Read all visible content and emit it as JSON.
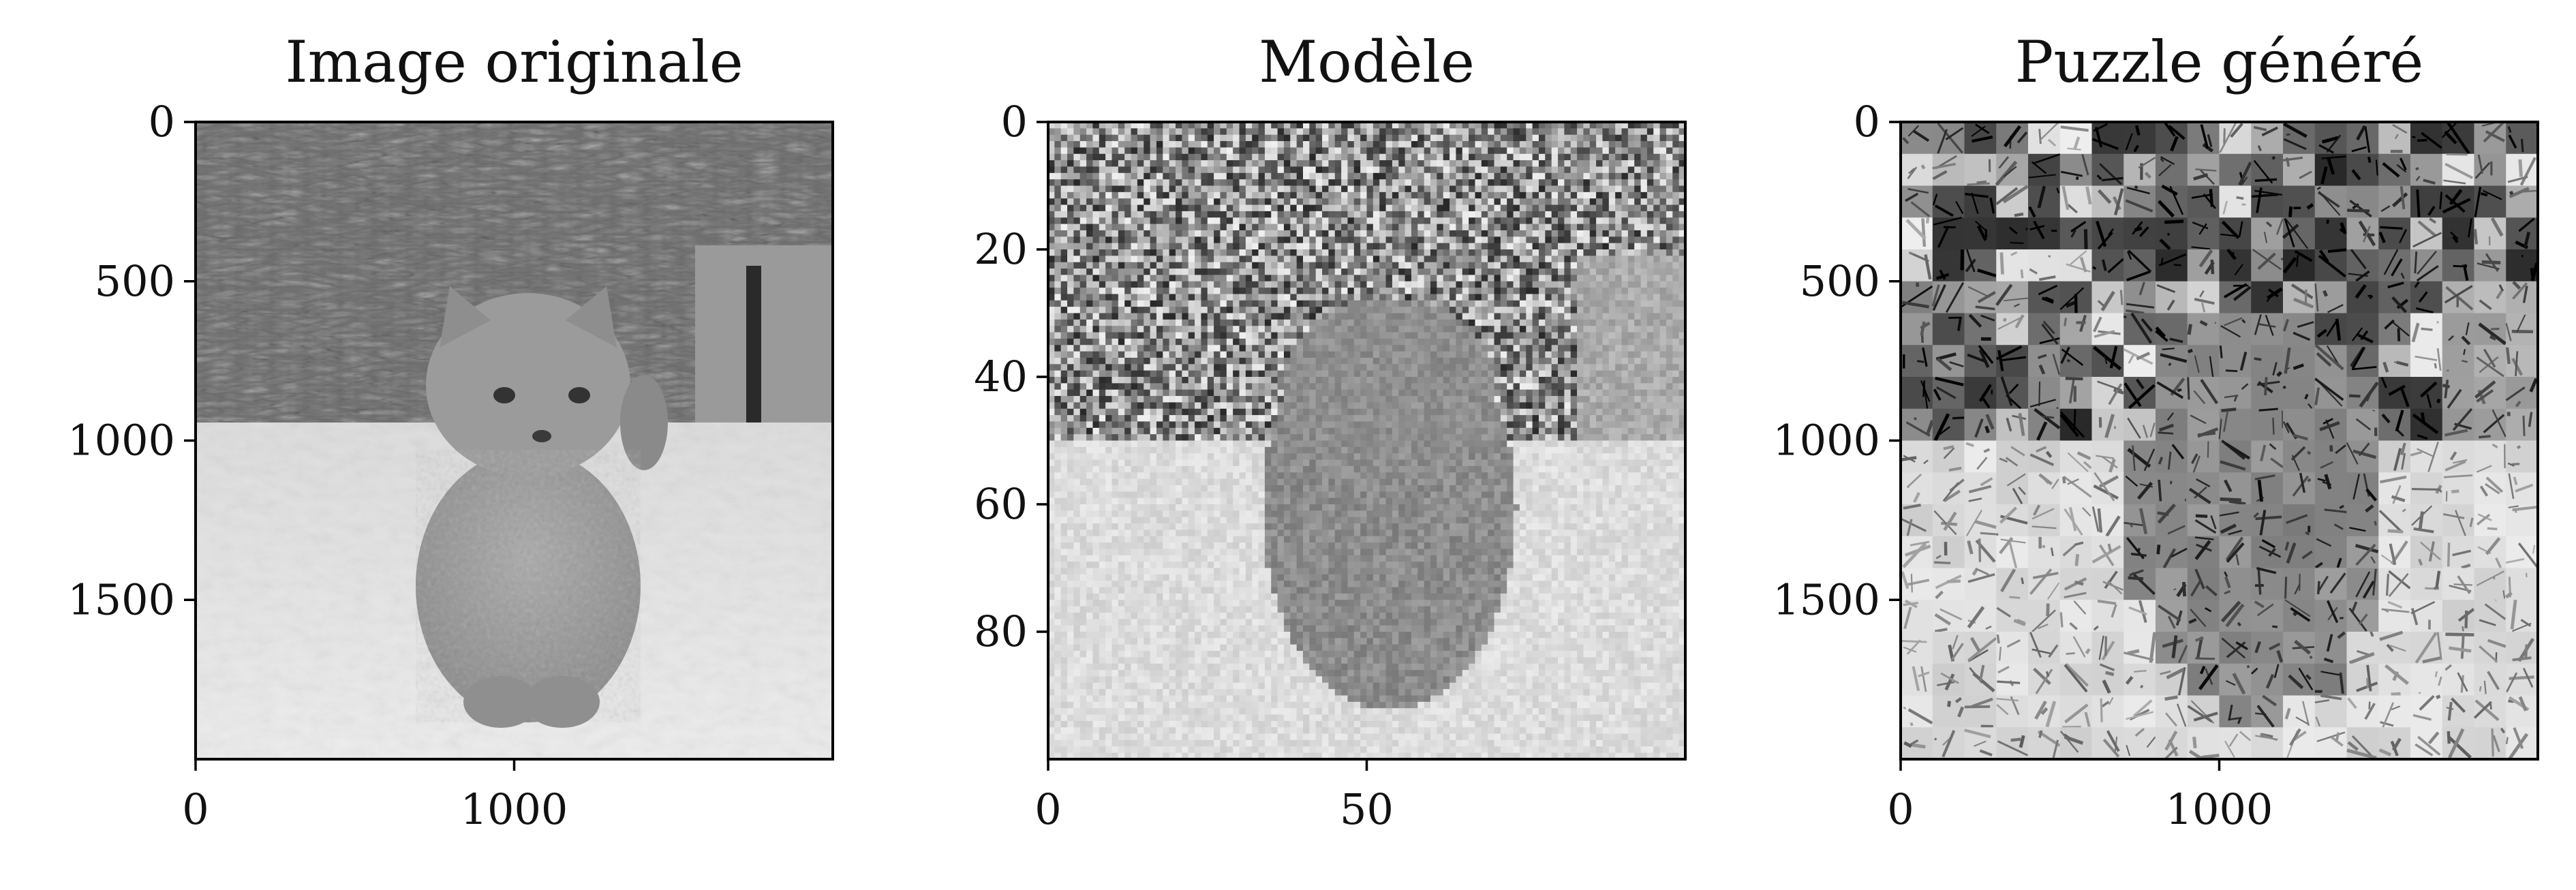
{
  "chart_data": [
    {
      "type": "image",
      "title": "Image originale",
      "xlim": [
        0,
        2000
      ],
      "ylim": [
        2000,
        0
      ],
      "xticks": [
        0,
        1000
      ],
      "yticks": [
        0,
        500,
        1000,
        1500
      ],
      "image": "grayscale photo of a ginger cat standing in snow in front of a snow-covered bush"
    },
    {
      "type": "image",
      "title": "Modèle",
      "xlim": [
        0,
        100
      ],
      "ylim": [
        100,
        0
      ],
      "xticks": [
        0,
        50
      ],
      "yticks": [
        0,
        20,
        40,
        60,
        80
      ],
      "image": "pixelated grayscale version of the cat photo (approx. 100x100 blocks)"
    },
    {
      "type": "image",
      "title": "Puzzle généré",
      "xlim": [
        0,
        2000
      ],
      "ylim": [
        2000,
        0
      ],
      "xticks": [
        0,
        1000
      ],
      "yticks": [
        0,
        500,
        1000,
        1500
      ],
      "image": "photomosaic puzzle of small grayscale tiles reconstructing the model image"
    }
  ],
  "colors": {
    "axes": "#000000",
    "background": "#ffffff"
  }
}
